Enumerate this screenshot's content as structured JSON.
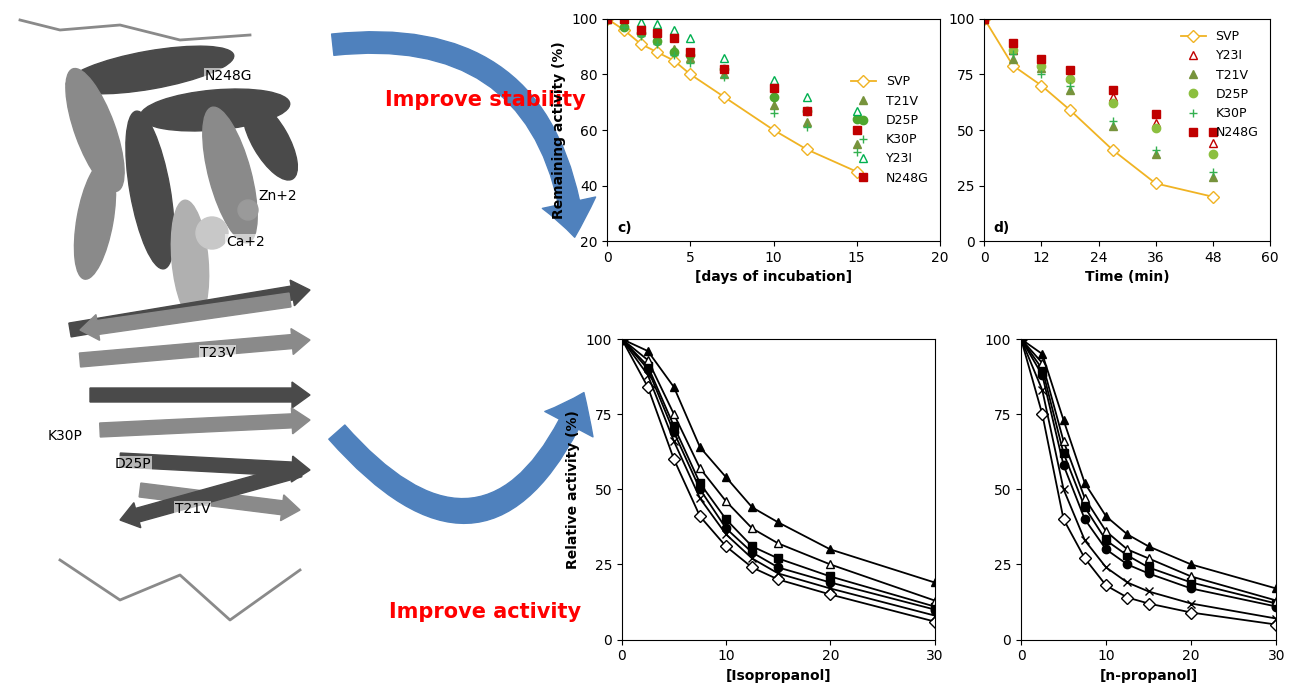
{
  "diagram": {
    "arrow_labels": [
      "Improve stability",
      "Improve activity"
    ],
    "structure_labels": [
      "N248G",
      "Zn+2",
      "Ca+2",
      "T23V",
      "K30P",
      "D25P",
      "T21V"
    ]
  },
  "chart_data": [
    {
      "type": "line",
      "annotations": [
        "c)"
      ],
      "x_label": "[days of incubation]",
      "y_label": "Remaining activity (%)",
      "xlim": [
        0,
        20
      ],
      "xticks": [
        0,
        5,
        10,
        15,
        20
      ],
      "ylim": [
        20,
        100
      ],
      "yticks": [
        20,
        40,
        60,
        80,
        100
      ],
      "legend": "center right",
      "x": [
        0,
        1,
        2,
        3,
        4,
        5,
        7,
        10,
        12,
        15
      ],
      "series": [
        {
          "name": "SVP",
          "color": "#f0b323",
          "marker": "open_diamond",
          "line_style": "solid",
          "values": [
            100,
            96,
            91,
            88,
            85,
            80,
            72,
            60,
            53,
            45
          ]
        },
        {
          "name": "T21V",
          "color": "#77933c",
          "marker": "triangle",
          "line_style": "none",
          "values": [
            100,
            98,
            96,
            93,
            89,
            86,
            80,
            69,
            63,
            55
          ]
        },
        {
          "name": "D25P",
          "color": "#4ea72e",
          "marker": "circle",
          "line_style": "none",
          "values": [
            100,
            97,
            95,
            92,
            88,
            87,
            82,
            72,
            67,
            64
          ]
        },
        {
          "name": "K30P",
          "color": "#33b050",
          "marker": "plus",
          "line_style": "none",
          "values": [
            100,
            97,
            94,
            91,
            87,
            84,
            79,
            66,
            61,
            52
          ]
        },
        {
          "name": "Y23I",
          "color": "#00b050",
          "marker": "open_triangle",
          "line_style": "none",
          "values": [
            100,
            100,
            99,
            98,
            96,
            93,
            86,
            78,
            72,
            67
          ]
        },
        {
          "name": "N248G",
          "color": "#c00000",
          "marker": "square",
          "line_style": "none",
          "values": [
            100,
            100,
            96,
            95,
            93,
            88,
            82,
            75,
            67,
            60
          ]
        }
      ]
    },
    {
      "type": "line",
      "annotations": [
        "d)"
      ],
      "x_label": "Time (min)",
      "xlim": [
        0,
        60
      ],
      "xticks": [
        0,
        12,
        24,
        36,
        48,
        60
      ],
      "ylim": [
        0,
        100
      ],
      "yticks": [
        0,
        25,
        50,
        75,
        100
      ],
      "legend": "upper right",
      "x": [
        0,
        6,
        12,
        18,
        27,
        36,
        48
      ],
      "series": [
        {
          "name": "SVP",
          "color": "#f0b323",
          "marker": "open_diamond",
          "line_style": "solid",
          "values": [
            100,
            79,
            70,
            59,
            41,
            26,
            20
          ]
        },
        {
          "name": "Y23I",
          "color": "#c00000",
          "marker": "open_triangle",
          "line_style": "none",
          "values": [
            100,
            86,
            80,
            74,
            65,
            53,
            44
          ]
        },
        {
          "name": "T21V",
          "color": "#77933c",
          "marker": "triangle",
          "line_style": "none",
          "values": [
            100,
            82,
            78,
            68,
            52,
            39,
            29
          ]
        },
        {
          "name": "D25P",
          "color": "#8cbf3f",
          "marker": "circle",
          "line_style": "none",
          "values": [
            100,
            86,
            79,
            73,
            62,
            51,
            39
          ]
        },
        {
          "name": "K30P",
          "color": "#33b050",
          "marker": "plus",
          "line_style": "none",
          "values": [
            100,
            84,
            75,
            70,
            54,
            41,
            31
          ]
        },
        {
          "name": "N248G",
          "color": "#c00000",
          "marker": "square",
          "line_style": "none",
          "values": [
            100,
            89,
            82,
            77,
            68,
            57,
            49
          ]
        }
      ]
    },
    {
      "type": "line",
      "x_label": "[Isopropanol]",
      "y_label": "Relative activity (%)",
      "xlim": [
        0,
        30
      ],
      "xticks": [
        0,
        10,
        20,
        30
      ],
      "ylim": [
        0,
        100
      ],
      "yticks": [
        0,
        25,
        50,
        75,
        100
      ],
      "x": [
        0,
        2.5,
        5,
        7.5,
        10,
        12.5,
        15,
        20,
        30
      ],
      "series": [
        {
          "color": "#000000",
          "marker": "open_diamond",
          "line_style": "solid",
          "values": [
            100,
            84,
            60,
            41,
            31,
            24,
            20,
            15,
            6
          ]
        },
        {
          "color": "#000000",
          "marker": "x",
          "line_style": "solid",
          "values": [
            100,
            88,
            66,
            47,
            35,
            27,
            22,
            17,
            8
          ]
        },
        {
          "color": "#000000",
          "marker": "circle",
          "line_style": "solid",
          "values": [
            100,
            90,
            69,
            50,
            37,
            29,
            24,
            19,
            10
          ]
        },
        {
          "color": "#000000",
          "marker": "square",
          "line_style": "solid",
          "values": [
            100,
            91,
            71,
            52,
            40,
            31,
            27,
            21,
            11
          ]
        },
        {
          "color": "#000000",
          "marker": "open_triangle",
          "line_style": "solid",
          "values": [
            100,
            93,
            75,
            57,
            46,
            37,
            32,
            25,
            13
          ]
        },
        {
          "color": "#000000",
          "marker": "triangle",
          "line_style": "solid",
          "values": [
            100,
            96,
            84,
            64,
            54,
            44,
            39,
            30,
            19
          ]
        }
      ]
    },
    {
      "type": "line",
      "x_label": "[n-propanol]",
      "xlim": [
        0,
        30
      ],
      "xticks": [
        0,
        10,
        20,
        30
      ],
      "ylim": [
        0,
        100
      ],
      "yticks": [
        0,
        25,
        50,
        75,
        100
      ],
      "x": [
        0,
        2.5,
        5,
        7.5,
        10,
        12.5,
        15,
        20,
        30
      ],
      "series": [
        {
          "color": "#000000",
          "marker": "open_diamond",
          "line_style": "solid",
          "values": [
            100,
            75,
            40,
            27,
            18,
            14,
            12,
            9,
            5
          ]
        },
        {
          "color": "#000000",
          "marker": "x",
          "line_style": "solid",
          "values": [
            100,
            83,
            50,
            33,
            24,
            19,
            16,
            12,
            7
          ]
        },
        {
          "color": "#000000",
          "marker": "circle",
          "line_style": "solid",
          "values": [
            100,
            88,
            58,
            40,
            30,
            25,
            22,
            17,
            11
          ]
        },
        {
          "color": "#000000",
          "marker": "square",
          "line_style": "solid",
          "values": [
            100,
            90,
            62,
            44,
            33,
            28,
            24,
            19,
            12
          ]
        },
        {
          "color": "#000000",
          "marker": "open_triangle",
          "line_style": "solid",
          "values": [
            100,
            92,
            66,
            47,
            36,
            30,
            27,
            21,
            13
          ]
        },
        {
          "color": "#000000",
          "marker": "triangle",
          "line_style": "solid",
          "values": [
            100,
            95,
            73,
            52,
            41,
            35,
            31,
            25,
            17
          ]
        }
      ]
    }
  ]
}
